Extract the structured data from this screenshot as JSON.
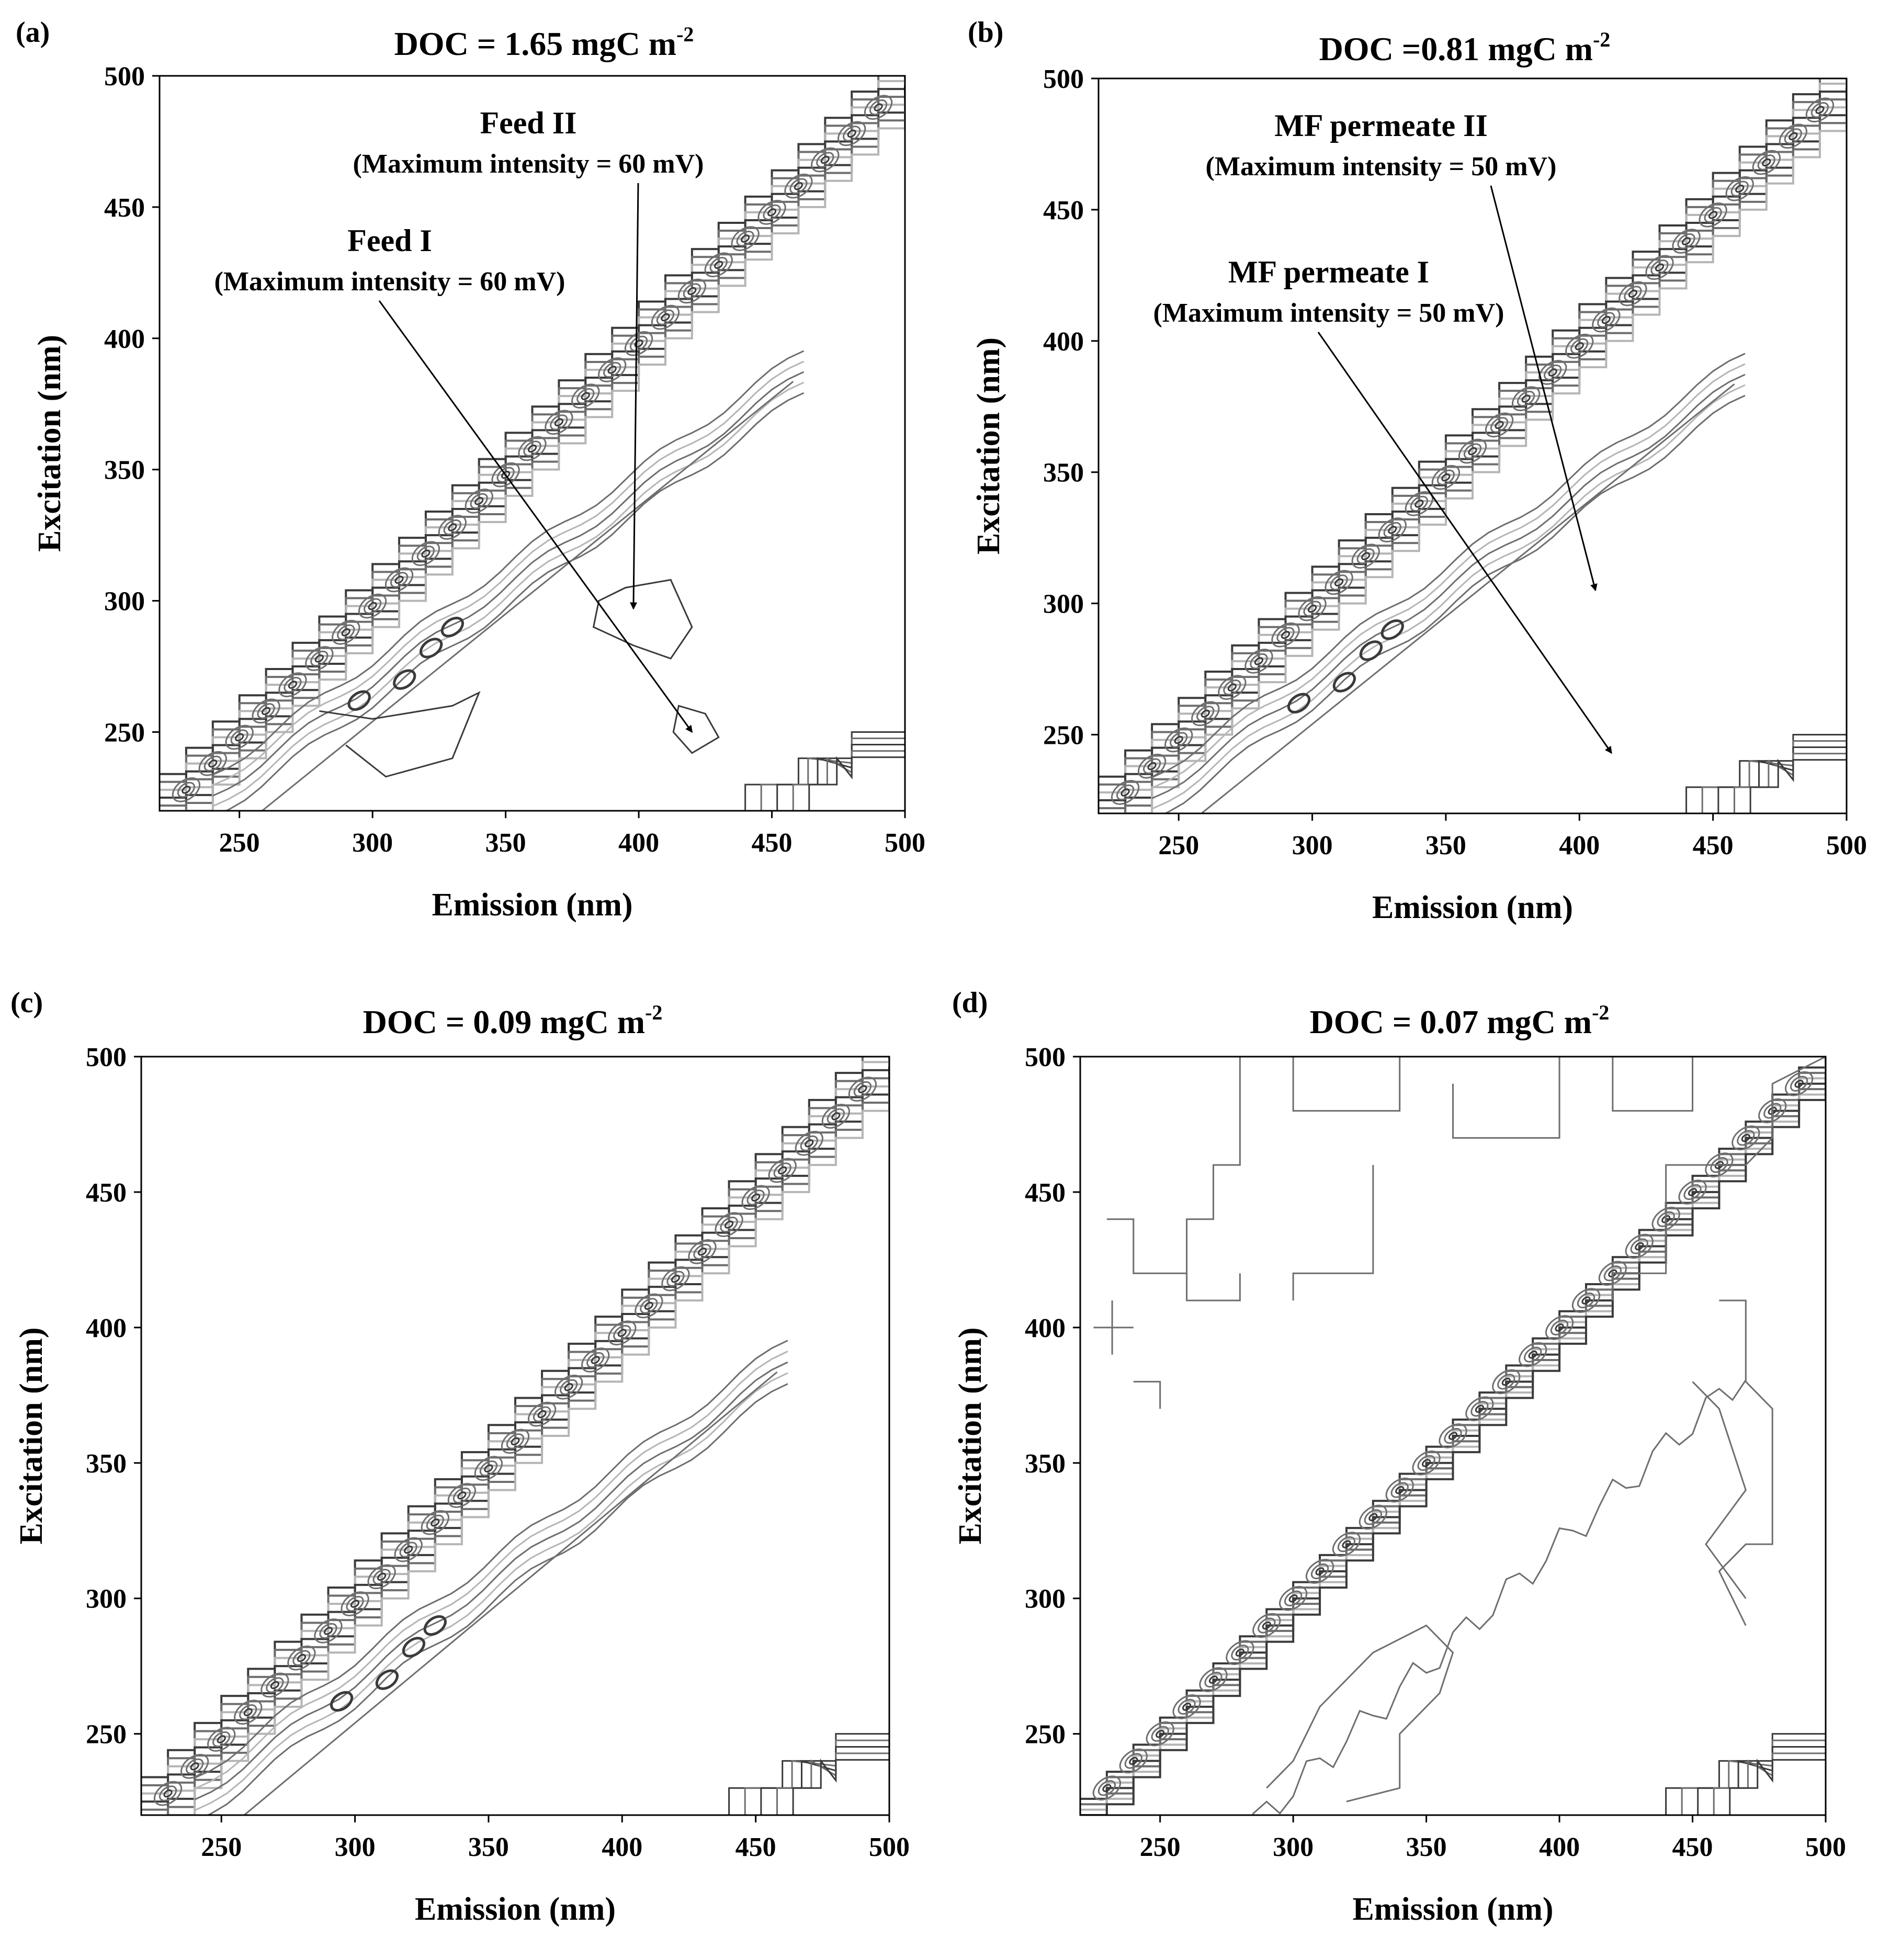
{
  "figure": {
    "colors": {
      "contour_dark": "#3a3a3a",
      "contour_mid": "#6e6e6e",
      "contour_light": "#b5b5b5",
      "axis": "#000000",
      "background": "#ffffff"
    }
  },
  "chart_data": [
    {
      "type": "contour",
      "panel_label": "(a)",
      "title": "DOC = 1.65 mgC m",
      "title_superscript": "-2",
      "xlabel": "Emission (nm)",
      "ylabel": "Excitation (nm)",
      "xlim": [
        220,
        500
      ],
      "ylim": [
        220,
        500
      ],
      "xticks": [
        250,
        300,
        350,
        400,
        450,
        500
      ],
      "yticks": [
        250,
        300,
        350,
        400,
        450,
        500
      ],
      "annotations": [
        {
          "title": "Feed II",
          "subtitle": "(Maximum intensity = 60 mV)",
          "target": [
            398,
            297
          ]
        },
        {
          "title": "Feed I",
          "subtitle": "(Maximum intensity = 60 mV)",
          "target": [
            420,
            250
          ]
        }
      ]
    },
    {
      "type": "contour",
      "panel_label": "(b)",
      "title": "DOC =0.81 mgC m",
      "title_superscript": "-2",
      "xlabel": "Emission (nm)",
      "ylabel": "Excitation (nm)",
      "xlim": [
        220,
        500
      ],
      "ylim": [
        220,
        500
      ],
      "xticks": [
        250,
        300,
        350,
        400,
        450,
        500
      ],
      "yticks": [
        250,
        300,
        350,
        400,
        450,
        500
      ],
      "annotations": [
        {
          "title": "MF permeate II",
          "subtitle": "(Maximum intensity = 50 mV)",
          "target": [
            406,
            305
          ]
        },
        {
          "title": "MF permeate I",
          "subtitle": "(Maximum intensity = 50 mV)",
          "target": [
            412,
            243
          ]
        }
      ]
    },
    {
      "type": "contour",
      "panel_label": "(c)",
      "title": "DOC = 0.09 mgC m",
      "title_superscript": "-2",
      "xlabel": "Emission (nm)",
      "ylabel": "Excitation (nm)",
      "xlim": [
        220,
        500
      ],
      "ylim": [
        220,
        500
      ],
      "xticks": [
        250,
        300,
        350,
        400,
        450,
        500
      ],
      "yticks": [
        250,
        300,
        350,
        400,
        450,
        500
      ],
      "annotations": []
    },
    {
      "type": "contour",
      "panel_label": "(d)",
      "title": "DOC = 0.07 mgC m",
      "title_superscript": "-2",
      "xlabel": "Emission (nm)",
      "ylabel": "Excitation (nm)",
      "xlim": [
        220,
        500
      ],
      "ylim": [
        220,
        500
      ],
      "xticks": [
        250,
        300,
        350,
        400,
        450,
        500
      ],
      "yticks": [
        250,
        300,
        350,
        400,
        450,
        500
      ],
      "annotations": []
    }
  ]
}
